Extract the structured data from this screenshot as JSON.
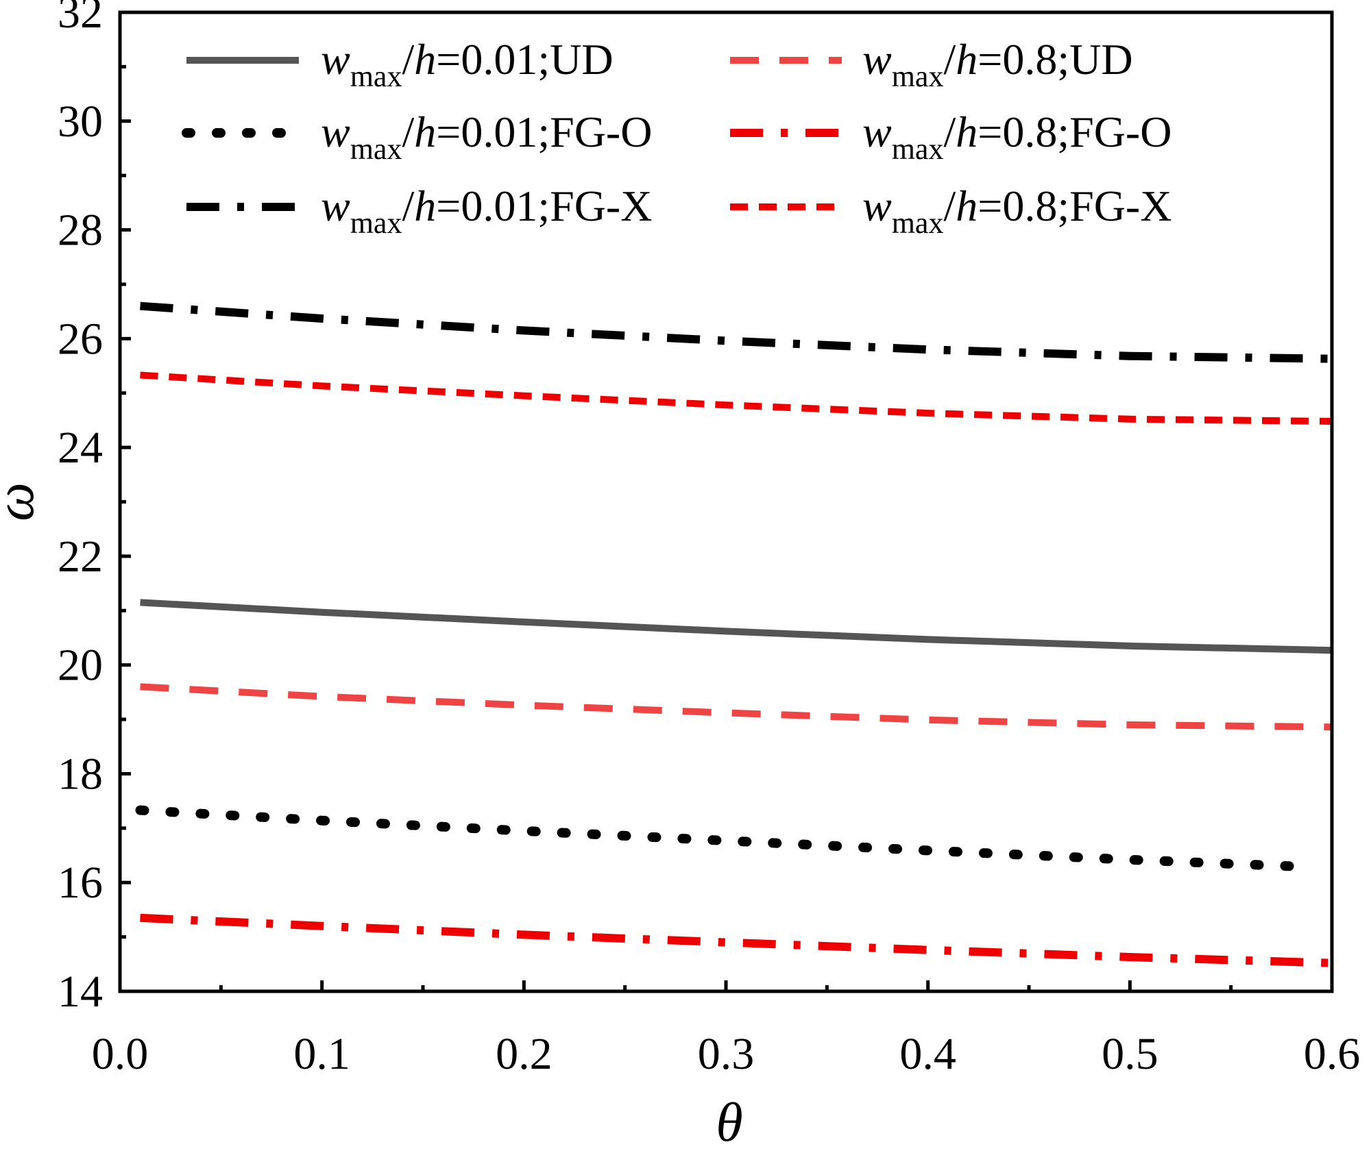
{
  "chart_data": {
    "type": "line",
    "xlabel": "θ",
    "ylabel": "ω",
    "xlim": [
      0.0,
      0.6
    ],
    "ylim": [
      14,
      32
    ],
    "x_ticks": [
      "0.0",
      "0.1",
      "0.2",
      "0.3",
      "0.4",
      "0.5",
      "0.6"
    ],
    "y_ticks": [
      "14",
      "16",
      "18",
      "20",
      "22",
      "24",
      "26",
      "28",
      "30",
      "32"
    ],
    "grid": false,
    "legend_placement": "top",
    "series": [
      {
        "name": "wmax/h=0.01;UD",
        "legend": {
          "pre": "w",
          "sub": "max",
          "mid": "/",
          "h": "h",
          "post": "=0.01;UD"
        },
        "color": "#555555",
        "dash": "solid",
        "x": [
          0.01,
          0.1,
          0.2,
          0.3,
          0.4,
          0.5,
          0.6
        ],
        "y": [
          21.15,
          20.97,
          20.79,
          20.62,
          20.47,
          20.35,
          20.27
        ]
      },
      {
        "name": "wmax/h=0.01;FG-O",
        "legend": {
          "pre": "w",
          "sub": "max",
          "mid": "/",
          "h": "h",
          "post": "=0.01;FG-O"
        },
        "color": "#000000",
        "dash": "dot",
        "x": [
          0.01,
          0.1,
          0.2,
          0.3,
          0.4,
          0.5,
          0.58
        ],
        "y": [
          17.33,
          17.14,
          16.95,
          16.77,
          16.59,
          16.42,
          16.3
        ]
      },
      {
        "name": "wmax/h=0.01;FG-X",
        "legend": {
          "pre": "w",
          "sub": "max",
          "mid": "/",
          "h": "h",
          "post": "=0.01;FG-X"
        },
        "color": "#000000",
        "dash": "dashdot",
        "x": [
          0.01,
          0.1,
          0.2,
          0.3,
          0.4,
          0.5,
          0.6
        ],
        "y": [
          26.6,
          26.37,
          26.15,
          25.96,
          25.8,
          25.68,
          25.63
        ]
      },
      {
        "name": "wmax/h=0.8;UD",
        "legend": {
          "pre": "w",
          "sub": "max",
          "mid": "/",
          "h": "h",
          "post": "=0.8;UD"
        },
        "color": "#ee4444",
        "dash": "dash",
        "x": [
          0.01,
          0.1,
          0.2,
          0.3,
          0.4,
          0.5,
          0.6
        ],
        "y": [
          19.6,
          19.42,
          19.26,
          19.12,
          18.99,
          18.9,
          18.86
        ]
      },
      {
        "name": "wmax/h=0.8;FG-O",
        "legend": {
          "pre": "w",
          "sub": "max",
          "mid": "/",
          "h": "h",
          "post": "=0.8;FG-O"
        },
        "color": "#ee0000",
        "dash": "dashdot",
        "x": [
          0.01,
          0.1,
          0.2,
          0.3,
          0.4,
          0.5,
          0.6
        ],
        "y": [
          15.35,
          15.2,
          15.04,
          14.9,
          14.76,
          14.63,
          14.52
        ]
      },
      {
        "name": "wmax/h=0.8;FG-X",
        "legend": {
          "pre": "w",
          "sub": "max",
          "mid": "/",
          "h": "h",
          "post": "=0.8;FG-X"
        },
        "color": "#ee0000",
        "dash": "shortdash",
        "x": [
          0.01,
          0.1,
          0.2,
          0.3,
          0.4,
          0.5,
          0.6
        ],
        "y": [
          25.33,
          25.13,
          24.95,
          24.78,
          24.63,
          24.52,
          24.48
        ]
      }
    ]
  }
}
